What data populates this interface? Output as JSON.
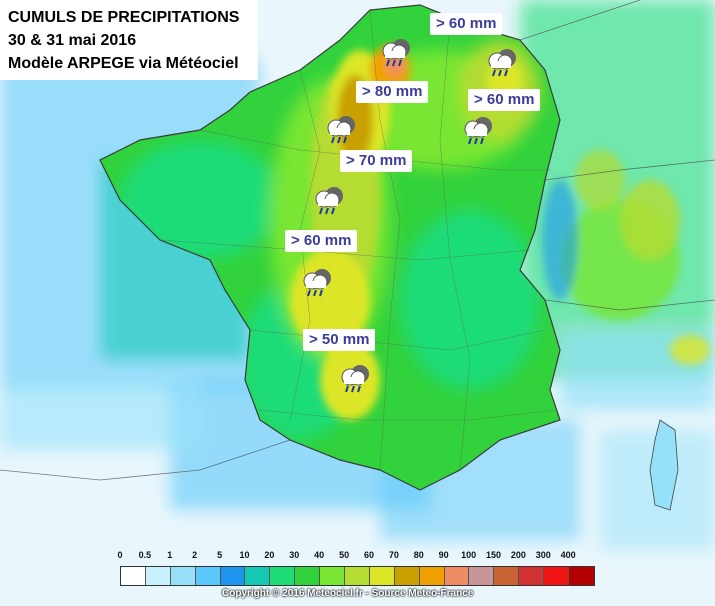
{
  "title": {
    "line1": "CUMULS DE PRECIPITATIONS",
    "line2": "30 & 31 mai 2016",
    "line3": "Modèle ARPEGE via Météociel"
  },
  "labels": [
    {
      "id": "label-east-60-top",
      "text": "> 60 mm"
    },
    {
      "id": "label-north-80",
      "text": "> 80 mm"
    },
    {
      "id": "label-east-60",
      "text": "> 60 mm"
    },
    {
      "id": "label-center-70",
      "text": "> 70 mm"
    },
    {
      "id": "label-center-60",
      "text": "> 60 mm"
    },
    {
      "id": "label-south-50",
      "text": "> 50 mm"
    }
  ],
  "legend": {
    "ticks": [
      "0",
      "0.5",
      "1",
      "2",
      "5",
      "10",
      "20",
      "30",
      "40",
      "50",
      "60",
      "70",
      "80",
      "90",
      "100",
      "150",
      "200",
      "300",
      "400"
    ],
    "colors": [
      "#ffffff",
      "#c8f0ff",
      "#96e1fa",
      "#5ac8fa",
      "#1e96f0",
      "#14c8b4",
      "#1edc78",
      "#32d23c",
      "#78e632",
      "#b4dc32",
      "#dce628",
      "#c8a000",
      "#f0a000",
      "#f08c64",
      "#c89696",
      "#c86432",
      "#d23232",
      "#f01414",
      "#b40000"
    ]
  },
  "copyright": "Copyright © 2016 Meteociel.fr - Source Meteo-France",
  "icons": [
    "rain-cloud-icon",
    "rain-cloud-icon",
    "rain-cloud-icon",
    "rain-cloud-icon",
    "rain-cloud-icon",
    "rain-cloud-icon",
    "rain-cloud-icon"
  ]
}
